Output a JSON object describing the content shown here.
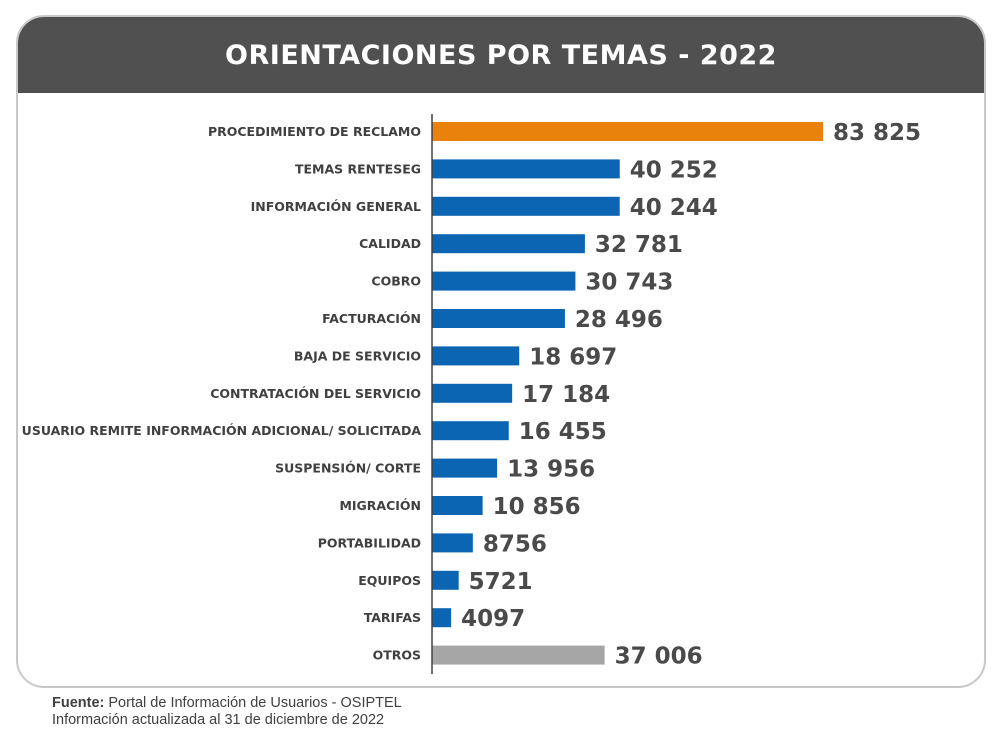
{
  "chart_data": {
    "type": "bar",
    "orientation": "horizontal",
    "title": "ORIENTACIONES POR TEMAS - 2022",
    "categories": [
      "PROCEDIMIENTO DE RECLAMO",
      "TEMAS RENTESEG",
      "INFORMACIÓN GENERAL",
      "CALIDAD",
      "COBRO",
      "FACTURACIÓN",
      "BAJA DE SERVICIO",
      "CONTRATACIÓN DEL SERVICIO",
      "USUARIO REMITE INFORMACIÓN ADICIONAL/ SOLICITADA",
      "SUSPENSIÓN/ CORTE",
      "MIGRACIÓN",
      "PORTABILIDAD",
      "EQUIPOS",
      "TARIFAS",
      "OTROS"
    ],
    "values": [
      83825,
      40252,
      40244,
      32781,
      30743,
      28496,
      18697,
      17184,
      16455,
      13956,
      10856,
      8756,
      5721,
      4097,
      37006
    ],
    "value_labels": [
      "83 825",
      "40 252",
      "40 244",
      "32 781",
      "30 743",
      "28 496",
      "18 697",
      "17 184",
      "16 455",
      "13 956",
      "10 856",
      "8756",
      "5721",
      "4097",
      "37 006"
    ],
    "bar_colors": [
      "#e8820c",
      "#0b65b2",
      "#0b65b2",
      "#0b65b2",
      "#0b65b2",
      "#0b65b2",
      "#0b65b2",
      "#0b65b2",
      "#0b65b2",
      "#0b65b2",
      "#0b65b2",
      "#0b65b2",
      "#0b65b2",
      "#0b65b2",
      "#a6a6a6"
    ],
    "xlabel": "",
    "ylabel": "",
    "xlim": [
      0,
      85000
    ],
    "grid": false,
    "legend": "none"
  },
  "footer": {
    "source_label": "Fuente:",
    "source_text": "Portal de Información de Usuarios - OSIPTEL",
    "update_text": "Información actualizada al 31 de diciembre de 2022"
  },
  "colors": {
    "header_bg": "#505050",
    "highlight": "#e8820c",
    "primary": "#0b65b2",
    "other": "#a6a6a6"
  }
}
